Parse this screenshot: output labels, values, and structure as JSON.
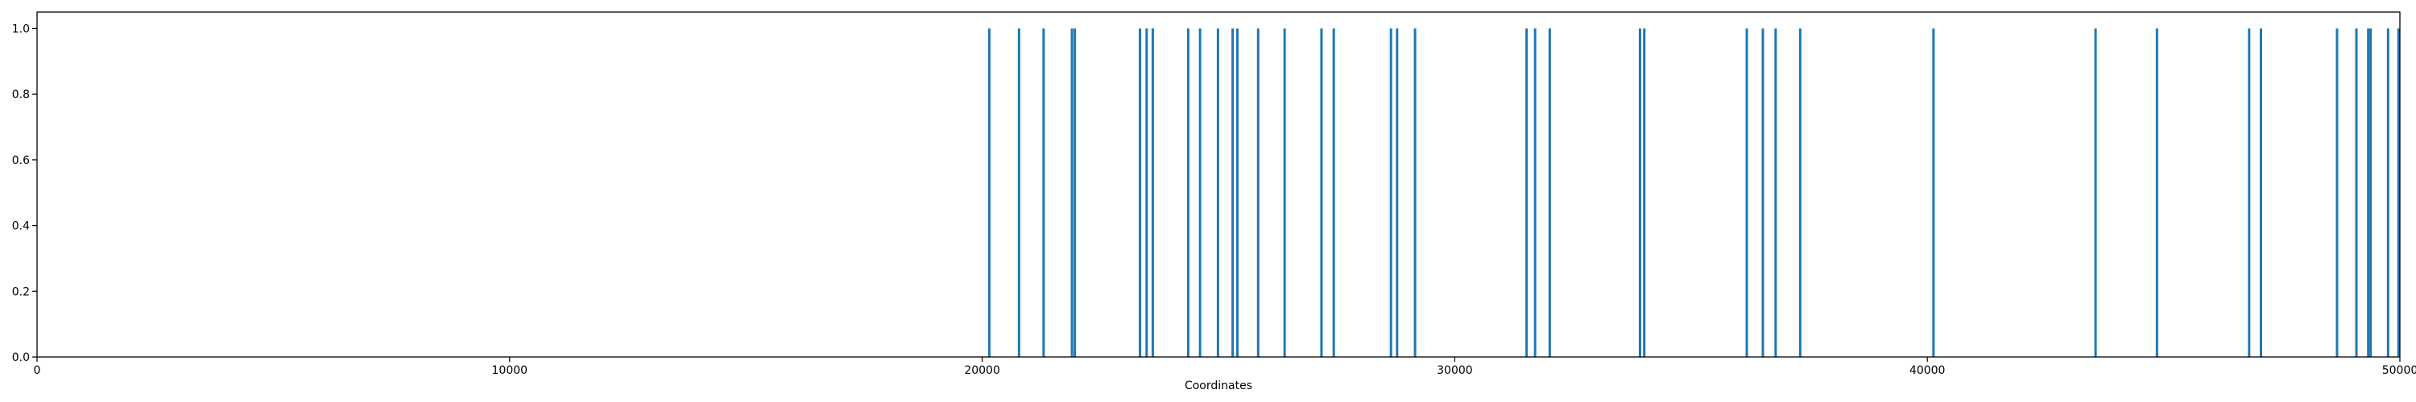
{
  "chart_data": {
    "type": "bar",
    "title": "",
    "xlabel": "Coordinates",
    "ylabel": "",
    "xlim": [
      0,
      50000
    ],
    "ylim": [
      0,
      1.05
    ],
    "xticks": [
      0,
      10000,
      20000,
      30000,
      40000,
      50000
    ],
    "xtick_labels": [
      "0",
      "10000",
      "20000",
      "30000",
      "40000",
      "50000"
    ],
    "yticks": [
      0.0,
      0.2,
      0.4,
      0.6,
      0.8,
      1.0
    ],
    "ytick_labels": [
      "0.0",
      "0.2",
      "0.4",
      "0.6",
      "0.8",
      "1.0"
    ],
    "grid": false,
    "bar_color": "#1f77b4",
    "series": [
      {
        "values": [
          {
            "x": 20150,
            "y": 1.0
          },
          {
            "x": 20780,
            "y": 1.0
          },
          {
            "x": 21300,
            "y": 1.0
          },
          {
            "x": 21900,
            "y": 1.0
          },
          {
            "x": 21960,
            "y": 1.0
          },
          {
            "x": 23340,
            "y": 1.0
          },
          {
            "x": 23480,
            "y": 1.0
          },
          {
            "x": 23610,
            "y": 1.0
          },
          {
            "x": 24360,
            "y": 1.0
          },
          {
            "x": 24610,
            "y": 1.0
          },
          {
            "x": 24990,
            "y": 1.0
          },
          {
            "x": 25300,
            "y": 1.0
          },
          {
            "x": 25400,
            "y": 1.0
          },
          {
            "x": 25840,
            "y": 1.0
          },
          {
            "x": 26400,
            "y": 1.0
          },
          {
            "x": 27180,
            "y": 1.0
          },
          {
            "x": 27440,
            "y": 1.0
          },
          {
            "x": 28650,
            "y": 1.0
          },
          {
            "x": 28780,
            "y": 1.0
          },
          {
            "x": 29160,
            "y": 1.0
          },
          {
            "x": 31520,
            "y": 1.0
          },
          {
            "x": 31700,
            "y": 1.0
          },
          {
            "x": 32010,
            "y": 1.0
          },
          {
            "x": 33920,
            "y": 1.0
          },
          {
            "x": 34010,
            "y": 1.0
          },
          {
            "x": 36180,
            "y": 1.0
          },
          {
            "x": 36520,
            "y": 1.0
          },
          {
            "x": 36790,
            "y": 1.0
          },
          {
            "x": 37310,
            "y": 1.0
          },
          {
            "x": 40130,
            "y": 1.0
          },
          {
            "x": 43560,
            "y": 1.0
          },
          {
            "x": 44860,
            "y": 1.0
          },
          {
            "x": 46810,
            "y": 1.0
          },
          {
            "x": 47060,
            "y": 1.0
          },
          {
            "x": 48670,
            "y": 1.0
          },
          {
            "x": 49080,
            "y": 1.0
          },
          {
            "x": 49330,
            "y": 1.0
          },
          {
            "x": 49380,
            "y": 1.0
          },
          {
            "x": 49750,
            "y": 1.0
          },
          {
            "x": 49970,
            "y": 1.0
          }
        ]
      }
    ]
  }
}
